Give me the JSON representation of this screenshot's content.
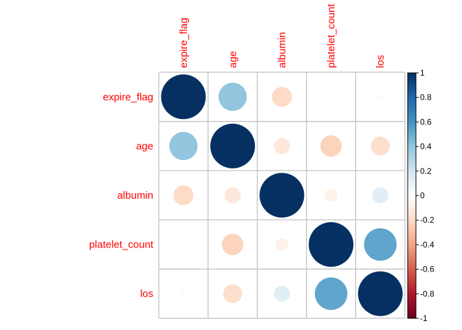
{
  "chart_data": {
    "type": "heatmap",
    "subtype": "correlation-circle-matrix",
    "variables": [
      "expire_flag",
      "age",
      "albumin",
      "platelet_count",
      "los"
    ],
    "matrix": [
      [
        1.0,
        0.4,
        -0.2,
        -0.01,
        -0.02
      ],
      [
        0.4,
        1.0,
        -0.13,
        -0.23,
        -0.18
      ],
      [
        -0.2,
        -0.13,
        1.0,
        -0.08,
        0.13
      ],
      [
        -0.01,
        -0.23,
        -0.08,
        1.0,
        0.53
      ],
      [
        -0.02,
        -0.18,
        0.13,
        0.53,
        1.0
      ]
    ],
    "colorbar": {
      "range": [
        -1,
        1
      ],
      "ticks": [
        "1",
        "0.8",
        "0.6",
        "0.4",
        "0.2",
        "0",
        "-0.2",
        "-0.4",
        "-0.6",
        "-0.8",
        "-1"
      ]
    },
    "label_color": "#ff0000",
    "grid": true
  }
}
